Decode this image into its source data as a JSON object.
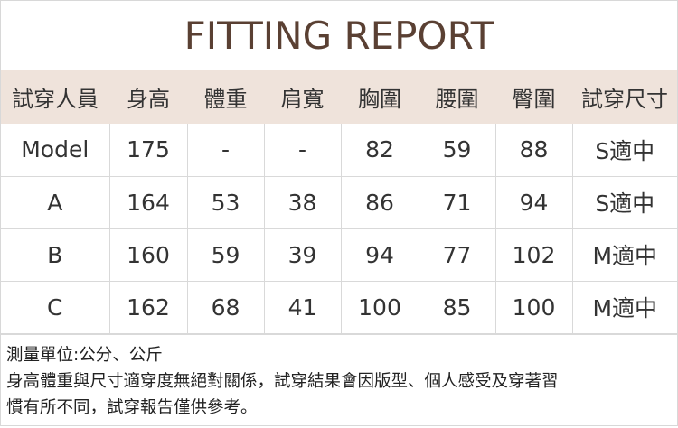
{
  "title": "FITTING REPORT",
  "headers": [
    "試穿人員",
    "身高",
    "體重",
    "肩寬",
    "胸圍",
    "腰圍",
    "臀圍",
    "試穿尺寸"
  ],
  "rows": [
    [
      "Model",
      "175",
      "-",
      "-",
      "82",
      "59",
      "88",
      "S適中"
    ],
    [
      "A",
      "164",
      "53",
      "38",
      "86",
      "71",
      "94",
      "S適中"
    ],
    [
      "B",
      "160",
      "59",
      "39",
      "94",
      "77",
      "102",
      "M適中"
    ],
    [
      "C",
      "162",
      "68",
      "41",
      "100",
      "85",
      "100",
      "M適中"
    ]
  ],
  "notes": [
    "測量單位:公分、公斤",
    "身高體重與尺寸適穿度無絕對關係，試穿結果會因版型、個人感受及穿著習",
    "慣有所不同，試穿報告僅供參考。"
  ],
  "colors": {
    "title": "#5a4033",
    "header_bg": "#efe3db"
  }
}
